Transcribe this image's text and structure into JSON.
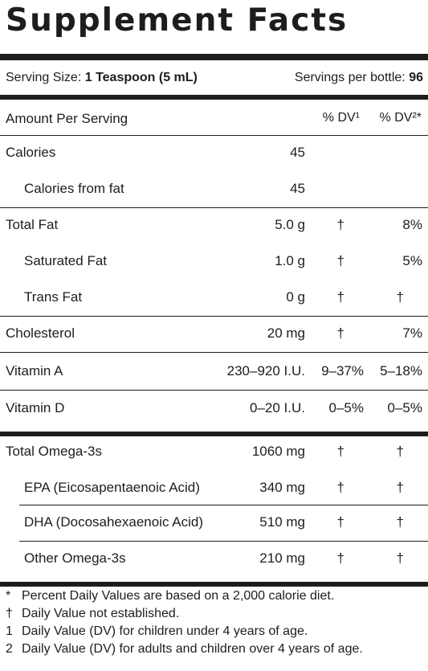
{
  "panel": {
    "title": "Supplement Facts",
    "serving_size_label": "Serving Size:",
    "serving_size_value": "1 Teaspoon (5 mL)",
    "servings_label": "Servings per bottle:",
    "servings_value": "96",
    "header": {
      "amount_label": "Amount Per Serving",
      "dv1": "% DV¹",
      "dv2": "% DV²*"
    },
    "rows": [
      {
        "label": "Calories",
        "amount": "45",
        "dv1": "",
        "dv2": ""
      },
      {
        "label": "Calories from fat",
        "amount": "45",
        "dv1": "",
        "dv2": ""
      },
      {
        "label": "Total Fat",
        "amount": "5.0 g",
        "dv1": "†",
        "dv2": "8%"
      },
      {
        "label": "Saturated Fat",
        "amount": "1.0 g",
        "dv1": "†",
        "dv2": "5%"
      },
      {
        "label": "Trans Fat",
        "amount": "0 g",
        "dv1": "†",
        "dv2": "†"
      },
      {
        "label": "Cholesterol",
        "amount": "20 mg",
        "dv1": "†",
        "dv2": "7%"
      },
      {
        "label": "Vitamin A",
        "amount": "230–920 I.U.",
        "dv1": "9–37%",
        "dv2": "5–18%"
      },
      {
        "label": "Vitamin D",
        "amount": "0–20 I.U.",
        "dv1": "0–5%",
        "dv2": "0–5%"
      },
      {
        "label": "Total Omega-3s",
        "amount": "1060 mg",
        "dv1": "†",
        "dv2": "†"
      },
      {
        "label": "EPA (Eicosapentaenoic Acid)",
        "amount": "340 mg",
        "dv1": "†",
        "dv2": "†"
      },
      {
        "label": "DHA (Docosahexaenoic Acid)",
        "amount": "510 mg",
        "dv1": "†",
        "dv2": "†"
      },
      {
        "label": "Other Omega-3s",
        "amount": "210 mg",
        "dv1": "†",
        "dv2": "†"
      }
    ],
    "footnotes": [
      {
        "marker": "*",
        "text": "Percent Daily Values are based on a 2,000 calorie diet."
      },
      {
        "marker": "†",
        "text": "Daily Value not established."
      },
      {
        "marker": "1",
        "text": "Daily Value (DV) for children under 4 years of age."
      },
      {
        "marker": "2",
        "text": "Daily Value (DV) for adults and children over 4 years of age."
      }
    ]
  }
}
